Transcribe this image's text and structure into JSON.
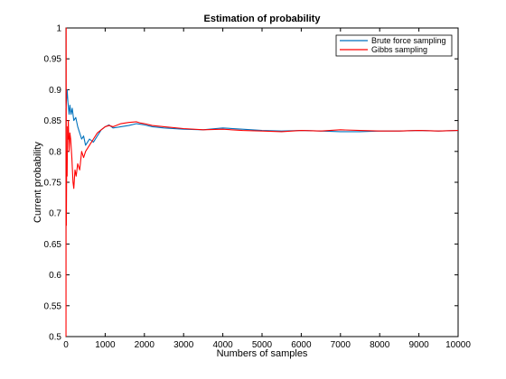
{
  "chart_data": {
    "type": "line",
    "title": "Estimation of probability",
    "xlabel": "Numbers of samples",
    "ylabel": "Current probability",
    "xlim": [
      0,
      10000
    ],
    "ylim": [
      0.5,
      1
    ],
    "x_ticks": [
      "0",
      "1000",
      "2000",
      "3000",
      "4000",
      "5000",
      "6000",
      "7000",
      "8000",
      "9000",
      "10000"
    ],
    "y_ticks": [
      "0.5",
      "0.55",
      "0.6",
      "0.65",
      "0.7",
      "0.75",
      "0.8",
      "0.85",
      "0.9",
      "0.95",
      "1"
    ],
    "grid": false,
    "legend_position": "top-right",
    "series": [
      {
        "name": "Brute force sampling",
        "color": "#0072bd",
        "x": [
          1,
          30,
          50,
          80,
          100,
          130,
          160,
          200,
          250,
          300,
          350,
          400,
          450,
          500,
          550,
          600,
          700,
          800,
          900,
          1000,
          1100,
          1200,
          1400,
          1600,
          1800,
          2000,
          2200,
          2500,
          3000,
          3500,
          4000,
          4500,
          5000,
          5500,
          6000,
          6500,
          7000,
          7500,
          8000,
          8500,
          9000,
          9500,
          10000
        ],
        "y": [
          0.87,
          0.9,
          0.88,
          0.86,
          0.875,
          0.86,
          0.87,
          0.85,
          0.855,
          0.84,
          0.83,
          0.82,
          0.825,
          0.81,
          0.815,
          0.82,
          0.815,
          0.825,
          0.835,
          0.84,
          0.843,
          0.838,
          0.84,
          0.842,
          0.845,
          0.843,
          0.84,
          0.838,
          0.836,
          0.835,
          0.838,
          0.836,
          0.834,
          0.833,
          0.834,
          0.833,
          0.832,
          0.832,
          0.833,
          0.833,
          0.834,
          0.833,
          0.834
        ]
      },
      {
        "name": "Gibbs sampling",
        "color": "#ff0000",
        "x": [
          1,
          5,
          10,
          20,
          30,
          40,
          50,
          60,
          80,
          100,
          120,
          150,
          180,
          200,
          230,
          260,
          300,
          350,
          400,
          450,
          500,
          600,
          700,
          800,
          900,
          1000,
          1100,
          1200,
          1400,
          1600,
          1800,
          1900,
          2000,
          2200,
          2500,
          3000,
          3500,
          4000,
          4500,
          5000,
          5500,
          6000,
          6500,
          7000,
          7500,
          8000,
          8500,
          9000,
          9500,
          10000
        ],
        "y": [
          0.5,
          1.0,
          0.68,
          0.8,
          0.76,
          0.84,
          0.82,
          0.85,
          0.8,
          0.83,
          0.82,
          0.79,
          0.75,
          0.74,
          0.77,
          0.76,
          0.78,
          0.77,
          0.8,
          0.79,
          0.8,
          0.81,
          0.82,
          0.83,
          0.835,
          0.84,
          0.842,
          0.84,
          0.845,
          0.847,
          0.848,
          0.846,
          0.845,
          0.842,
          0.84,
          0.837,
          0.835,
          0.836,
          0.834,
          0.833,
          0.832,
          0.834,
          0.833,
          0.835,
          0.834,
          0.833,
          0.833,
          0.834,
          0.833,
          0.834
        ]
      }
    ]
  }
}
